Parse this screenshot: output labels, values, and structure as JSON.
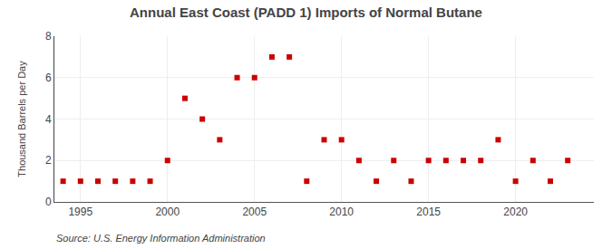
{
  "chart_data": {
    "type": "scatter",
    "title": "Annual East Coast (PADD 1) Imports of Normal Butane",
    "y_label": "Thousand Barrels per Day",
    "annotations": [
      "Source: U.S. Energy Information Administration"
    ],
    "x": [
      1994,
      1995,
      1996,
      1997,
      1998,
      1999,
      2000,
      2001,
      2002,
      2003,
      2004,
      2005,
      2006,
      2007,
      2008,
      2009,
      2010,
      2011,
      2012,
      2013,
      2014,
      2015,
      2016,
      2017,
      2018,
      2019,
      2020,
      2021,
      2022,
      2023
    ],
    "values": [
      1,
      1,
      1,
      1,
      1,
      1,
      2,
      5,
      4,
      3,
      6,
      6,
      7,
      7,
      1,
      3,
      3,
      2,
      1,
      2,
      1,
      2,
      2,
      2,
      2,
      3,
      1,
      2,
      1,
      2
    ],
    "color": "#cc0000",
    "marker": "square",
    "xlim": [
      1993.5,
      2024.5
    ],
    "xticks": [
      1995,
      2000,
      2005,
      2010,
      2015,
      2020
    ],
    "ylim": [
      0,
      8
    ],
    "yticks": [
      0,
      2,
      4,
      6,
      8
    ],
    "grid": true
  }
}
